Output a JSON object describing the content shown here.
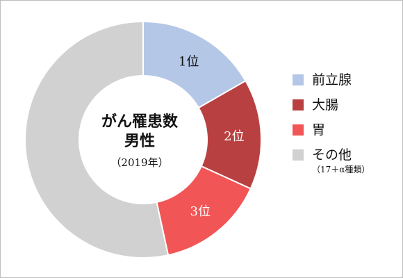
{
  "chart_data": {
    "type": "pie",
    "center": {
      "line1": "がん罹患数",
      "line2": "男性",
      "year": "（2019年）"
    },
    "categories": [
      "前立腺",
      "大腸",
      "胃",
      "その他"
    ],
    "values": [
      16.7,
      15.1,
      14.8,
      53.4
    ],
    "slice_labels": [
      "1位",
      "2位",
      "3位",
      ""
    ],
    "colors": [
      "#b4c7e7",
      "#b94040",
      "#f25555",
      "#d1d1d1"
    ],
    "note": "（17＋α種類）",
    "legend_position": "right"
  }
}
